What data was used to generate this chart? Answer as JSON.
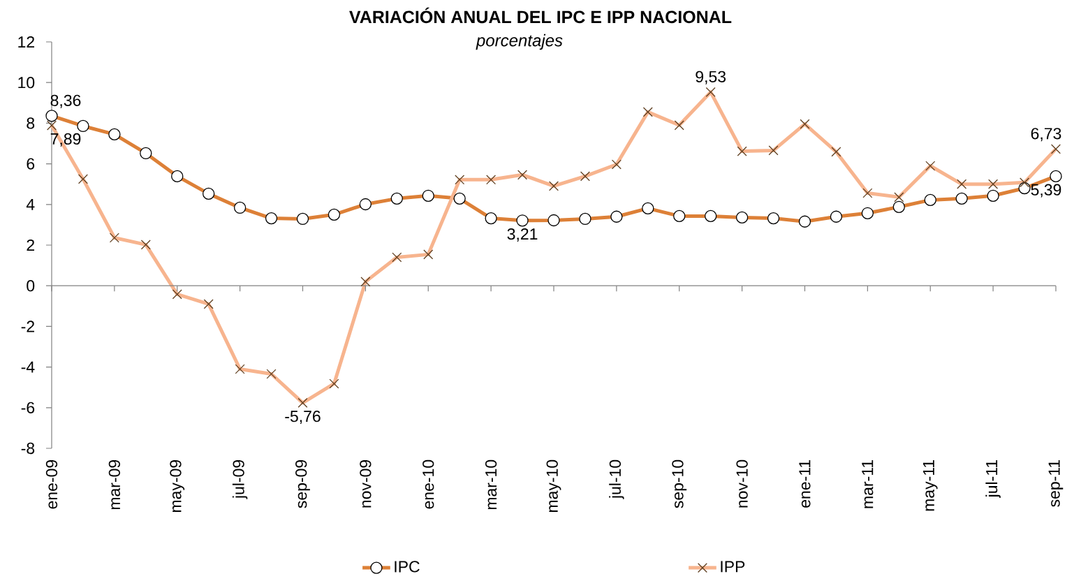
{
  "chart_data": {
    "type": "line",
    "title": "VARIACIÓN ANUAL DEL IPC E IPP NACIONAL",
    "subtitle": "porcentajes",
    "categories": [
      "ene-09",
      null,
      "mar-09",
      null,
      "may-09",
      null,
      "jul-09",
      null,
      "sep-09",
      null,
      "nov-09",
      null,
      "ene-10",
      null,
      "mar-10",
      null,
      "may-10",
      null,
      "jul-10",
      null,
      "sep-10",
      null,
      "nov-10",
      null,
      "ene-11",
      null,
      "mar-11",
      null,
      "may-11",
      null,
      "jul-11",
      null,
      "sep-11"
    ],
    "series": [
      {
        "name": "IPC",
        "color": "#dd8037",
        "marker": "circle",
        "values": [
          8.36,
          7.86,
          7.45,
          6.52,
          5.39,
          4.53,
          3.84,
          3.32,
          3.29,
          3.5,
          4.01,
          4.29,
          4.43,
          4.29,
          3.32,
          3.21,
          3.22,
          3.29,
          3.4,
          3.81,
          3.43,
          3.43,
          3.36,
          3.32,
          3.16,
          3.4,
          3.57,
          3.88,
          4.22,
          4.29,
          4.43,
          4.8,
          5.39
        ],
        "value_labels": [
          "8,36",
          null,
          null,
          null,
          null,
          null,
          null,
          null,
          null,
          null,
          null,
          null,
          null,
          null,
          null,
          "3,21",
          null,
          null,
          null,
          null,
          null,
          null,
          null,
          null,
          null,
          null,
          null,
          null,
          null,
          null,
          null,
          null,
          "5,39"
        ]
      },
      {
        "name": "IPP",
        "color": "#f7b48e",
        "marker": "cross",
        "values": [
          7.89,
          5.25,
          2.36,
          2.02,
          -0.42,
          -0.9,
          -4.1,
          -4.34,
          -5.76,
          -4.82,
          0.2,
          1.4,
          1.54,
          5.22,
          5.22,
          5.46,
          4.91,
          5.39,
          5.97,
          8.55,
          7.9,
          9.53,
          6.62,
          6.66,
          7.96,
          6.59,
          4.56,
          4.36,
          5.9,
          5.0,
          5.0,
          5.08,
          6.73
        ],
        "value_labels": [
          "7,89",
          null,
          null,
          null,
          null,
          null,
          null,
          null,
          "-5,76",
          null,
          null,
          null,
          null,
          null,
          null,
          null,
          null,
          null,
          null,
          null,
          null,
          "9,53",
          null,
          null,
          null,
          null,
          null,
          null,
          null,
          null,
          null,
          null,
          "6,73"
        ]
      }
    ],
    "ylim": [
      -8,
      12
    ],
    "yticks": [
      -8,
      -6,
      -4,
      -2,
      0,
      2,
      4,
      6,
      8,
      10,
      12
    ],
    "ref_lines": [
      {
        "axis": "y",
        "value": 0,
        "color": "#808080"
      }
    ],
    "grid": false,
    "legend": "bottom",
    "line_style": "solid"
  }
}
